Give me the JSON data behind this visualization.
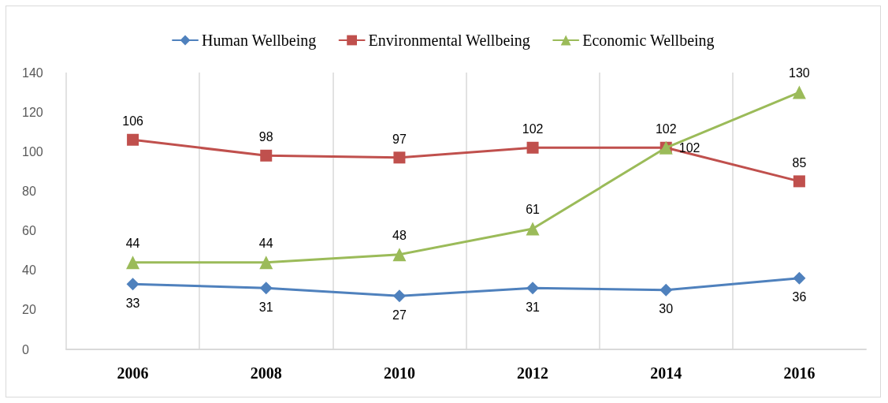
{
  "chart_data": {
    "type": "line",
    "categories": [
      "2006",
      "2008",
      "2010",
      "2012",
      "2014",
      "2016"
    ],
    "series": [
      {
        "name": "Human Wellbeing",
        "color": "#4f81bd",
        "marker": "diamond",
        "values": [
          33,
          31,
          27,
          31,
          30,
          36
        ]
      },
      {
        "name": "Environmental Wellbeing",
        "color": "#c0504d",
        "marker": "square",
        "values": [
          106,
          98,
          97,
          102,
          102,
          85
        ]
      },
      {
        "name": "Economic Wellbeing",
        "color": "#9bbb59",
        "marker": "triangle",
        "values": [
          44,
          44,
          48,
          61,
          102,
          130
        ]
      }
    ],
    "ylim": [
      0,
      140
    ],
    "yticks": [
      0,
      20,
      40,
      60,
      80,
      100,
      120,
      140
    ],
    "grid": "x",
    "legend": "top",
    "data_labels": true
  }
}
